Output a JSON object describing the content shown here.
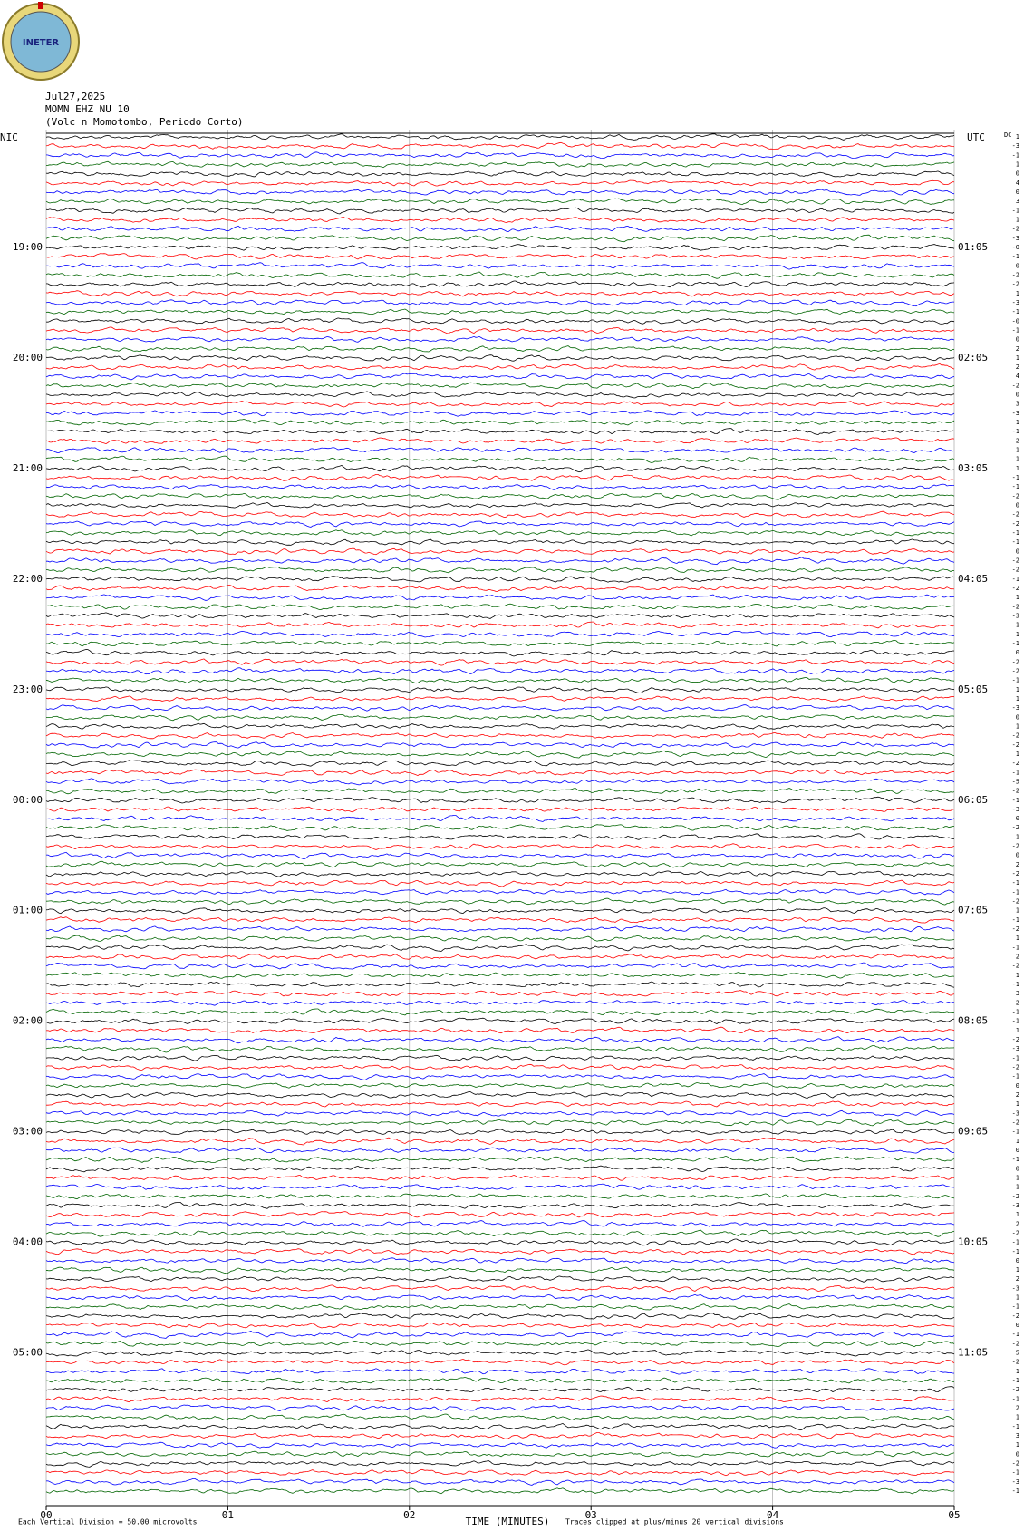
{
  "logo": {
    "text": "INETER"
  },
  "chart_data": {
    "type": "helicorder",
    "title_lines": [
      "Jul27,2025",
      "MOMN EHZ NU 10",
      "(Volc n Momotombo, Periodo Corto)"
    ],
    "left_label": "NIC",
    "right_label": "UTC",
    "left_ticks": [
      "19:00",
      "20:00",
      "21:00",
      "22:00",
      "23:00",
      "00:00",
      "01:00",
      "02:00",
      "03:00",
      "04:00",
      "05:00"
    ],
    "right_ticks": [
      "01:05",
      "02:05",
      "03:05",
      "04:05",
      "05:05",
      "06:05",
      "07:05",
      "08:05",
      "09:05",
      "10:05",
      "11:05"
    ],
    "traces_per_label": 12,
    "trace_colors": [
      "#000000",
      "#ff0000",
      "#0000ff",
      "#006400"
    ],
    "xlim": [
      0,
      5
    ],
    "xticks": [
      {
        "value": 0,
        "label": "00"
      },
      {
        "value": 1,
        "label": "01"
      },
      {
        "value": 2,
        "label": "02"
      },
      {
        "value": 3,
        "label": "03"
      },
      {
        "value": 4,
        "label": "04"
      },
      {
        "value": 5,
        "label": "05"
      }
    ],
    "x_label": "TIME (MINUTES)",
    "dc_header": "DC",
    "dc_offsets": [
      "1",
      "-3",
      "-1",
      "1",
      "0",
      "4",
      "0",
      "3",
      "-1",
      "1",
      "-2",
      "-3",
      "-0",
      "-1",
      "0",
      "-2",
      "-2",
      "1",
      "-3",
      "-1",
      "-0",
      "-1",
      "0",
      "2",
      "1",
      "2",
      "4",
      "-2",
      "0",
      "3",
      "-3",
      "1",
      "-1",
      "-2",
      "1",
      "1",
      "1",
      "-1",
      "-1",
      "-2",
      "0",
      "-2",
      "-2",
      "-1",
      "-1",
      "0",
      "-2",
      "-2",
      "-1",
      "-2",
      "1",
      "-2",
      "-3",
      "-1",
      "1",
      "-1",
      "0",
      "-2",
      "-2",
      "-1",
      "1",
      "1",
      "-3",
      "0",
      "1",
      "-2",
      "-2",
      "1",
      "-2",
      "-1",
      "-5",
      "-2",
      "-1",
      "-3",
      "0",
      "-2",
      "1",
      "-2",
      "0",
      "2",
      "-2",
      "-1",
      "-1",
      "-2",
      "1",
      "-1",
      "-2",
      "1",
      "-1",
      "2",
      "-2",
      "1",
      "-1",
      "3",
      "2",
      "-1",
      "-1",
      "1",
      "-2",
      "-3",
      "-1",
      "-2",
      "-1",
      "0",
      "2",
      "1",
      "-3",
      "-2",
      "-1",
      "1",
      "0",
      "-1",
      "0",
      "1",
      "-1",
      "-2",
      "-3",
      "1",
      "2",
      "-2",
      "-1",
      "-1",
      "0",
      "1",
      "2",
      "-3",
      "1",
      "-1",
      "-2",
      "0",
      "-1",
      "-2",
      "5",
      "-2",
      "1",
      "-1",
      "-2",
      "-1",
      "2",
      "1",
      "-1",
      "3",
      "1",
      "0",
      "-2",
      "-1",
      "-3",
      "-1"
    ],
    "footer_left": "Each Vertical Division =   50.00 microvolts",
    "footer_right": "Traces clipped at plus/minus 20 vertical divisions"
  }
}
